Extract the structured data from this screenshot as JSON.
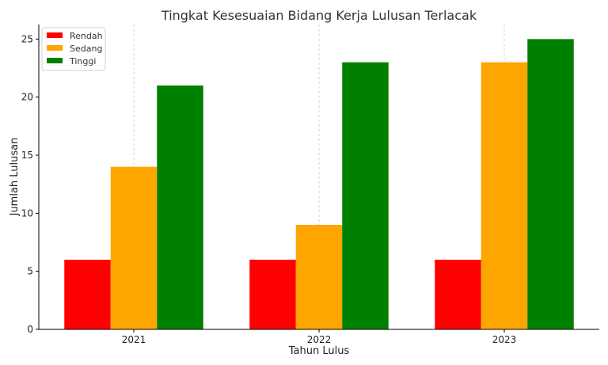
{
  "chart_data": {
    "type": "bar",
    "title": "Tingkat Kesesuaian Bidang Kerja Lulusan Terlacak",
    "xlabel": "Tahun Lulus",
    "ylabel": "Jumlah Lulusan",
    "categories": [
      "2021",
      "2022",
      "2023"
    ],
    "series": [
      {
        "name": "Rendah",
        "color": "#ff0000",
        "values": [
          6,
          6,
          6
        ]
      },
      {
        "name": "Sedang",
        "color": "#ffa500",
        "values": [
          14,
          9,
          23
        ]
      },
      {
        "name": "Tinggi",
        "color": "#008000",
        "values": [
          21,
          23,
          25
        ]
      }
    ],
    "ylim": [
      0,
      26.25
    ],
    "yticks": [
      0,
      5,
      10,
      15,
      20,
      25
    ],
    "grid": "x-dashed",
    "legend": "top-left"
  }
}
